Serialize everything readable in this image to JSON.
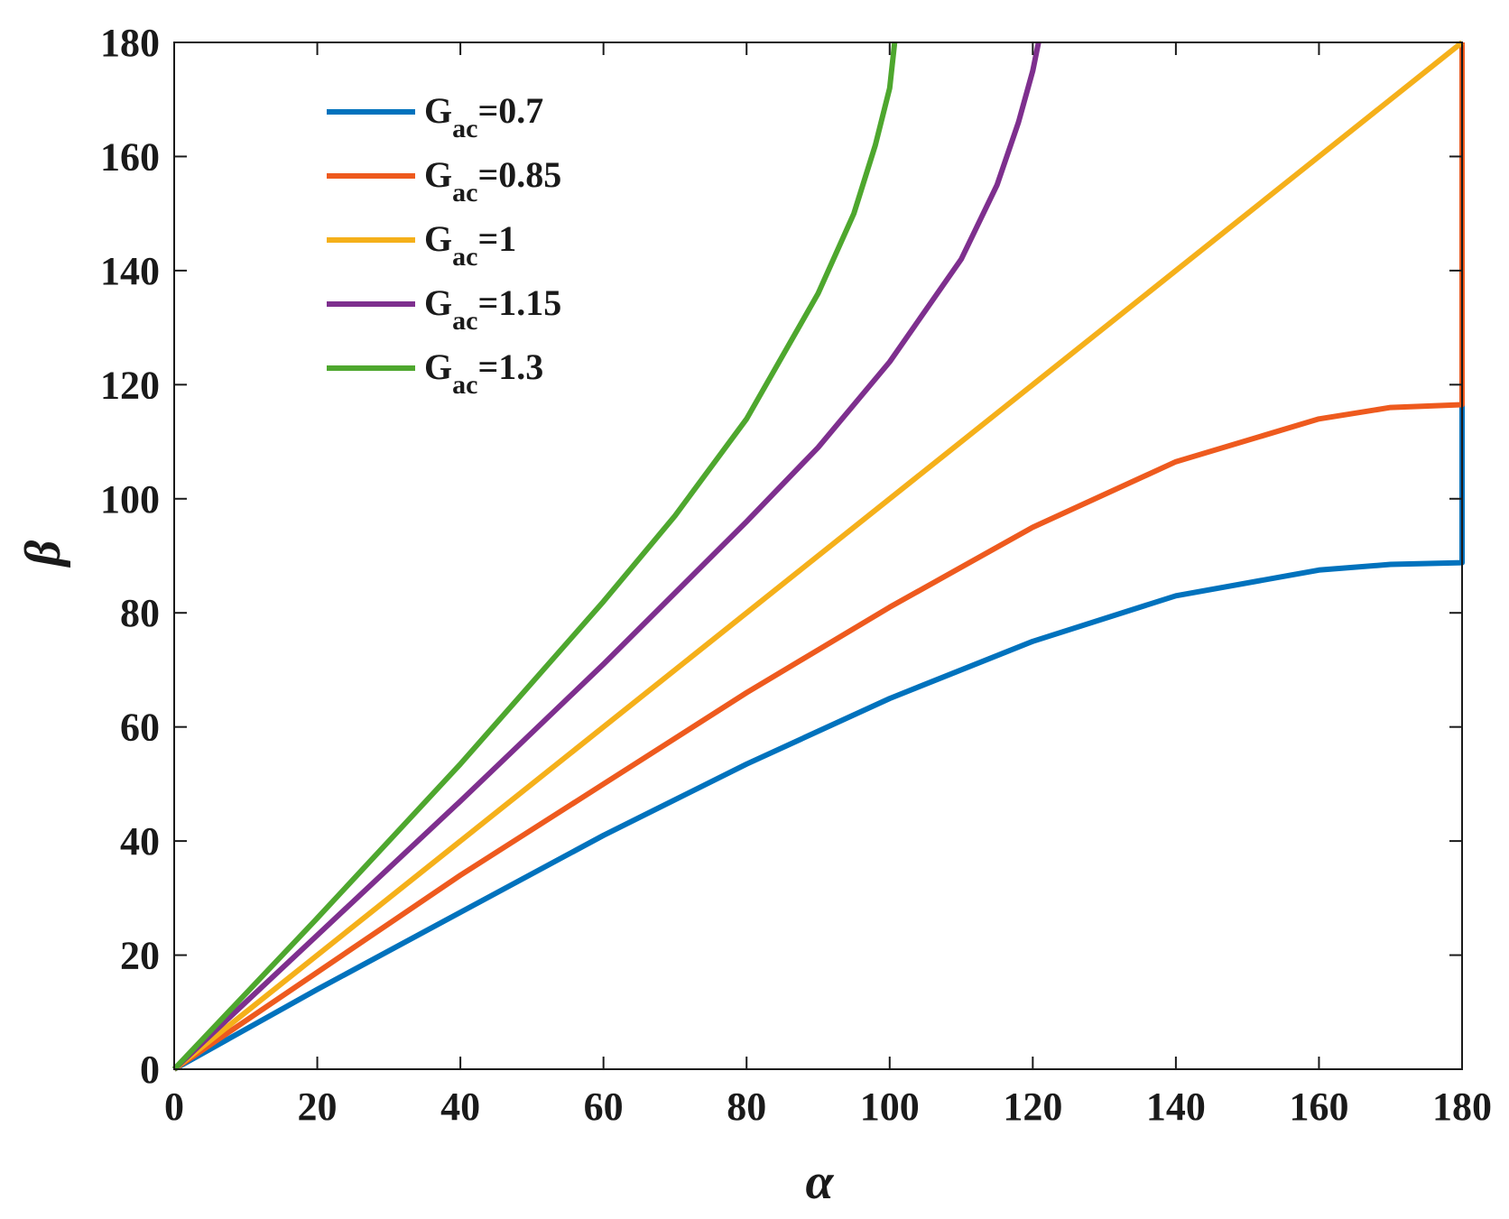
{
  "chart_data": {
    "type": "line",
    "title": "",
    "xlabel": "α",
    "ylabel": "β",
    "xlim": [
      0,
      180
    ],
    "ylim": [
      0,
      180
    ],
    "xticks": [
      0,
      20,
      40,
      60,
      80,
      100,
      120,
      140,
      160,
      180
    ],
    "yticks": [
      0,
      20,
      40,
      60,
      80,
      100,
      120,
      140,
      160,
      180
    ],
    "grid": false,
    "legend_position": "top-left",
    "series": [
      {
        "name": "G_ac=0.7",
        "label_main": "G",
        "label_sub": "ac",
        "label_value": "=0.7",
        "color": "#0072BD",
        "x": [
          0,
          20,
          40,
          60,
          80,
          100,
          120,
          140,
          160,
          170,
          180,
          180
        ],
        "y": [
          0,
          14,
          27.5,
          41,
          53.5,
          65,
          75,
          83,
          87.5,
          88.5,
          88.8,
          116.5
        ]
      },
      {
        "name": "G_ac=0.85",
        "label_main": "G",
        "label_sub": "ac",
        "label_value": "=0.85",
        "color": "#EE5A1E",
        "x": [
          0,
          20,
          40,
          60,
          80,
          100,
          120,
          140,
          160,
          170,
          180,
          180
        ],
        "y": [
          0,
          17,
          34,
          50,
          66,
          81,
          95,
          106.5,
          114,
          116,
          116.5,
          180
        ]
      },
      {
        "name": "G_ac=1",
        "label_main": "G",
        "label_sub": "ac",
        "label_value": "=1",
        "color": "#F5B01A",
        "x": [
          0,
          180
        ],
        "y": [
          0,
          180
        ]
      },
      {
        "name": "G_ac=1.15",
        "label_main": "G",
        "label_sub": "ac",
        "label_value": "=1.15",
        "color": "#7E2F8E",
        "x": [
          0,
          20,
          40,
          60,
          80,
          90,
          100,
          110,
          115,
          118,
          120,
          120.8
        ],
        "y": [
          0,
          23.5,
          47,
          71,
          96,
          109,
          124,
          142,
          155,
          166,
          175,
          180
        ]
      },
      {
        "name": "G_ac=1.3",
        "label_main": "G",
        "label_sub": "ac",
        "label_value": "=1.3",
        "color": "#4EA72E",
        "x": [
          0,
          20,
          40,
          60,
          70,
          80,
          90,
          95,
          98,
          100,
          100.7
        ],
        "y": [
          0,
          26.5,
          53.5,
          82,
          97,
          114,
          136,
          150,
          162,
          172,
          180
        ]
      }
    ]
  }
}
